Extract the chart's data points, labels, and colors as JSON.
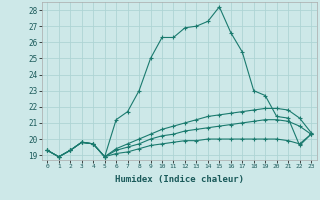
{
  "title": "",
  "xlabel": "Humidex (Indice chaleur)",
  "ylabel": "",
  "background_color": "#cde8e8",
  "grid_color": "#aed4d4",
  "line_color": "#1a7a6e",
  "xlim": [
    -0.5,
    23.5
  ],
  "ylim": [
    18.7,
    28.5
  ],
  "xtick_vals": [
    0,
    1,
    2,
    3,
    4,
    5,
    6,
    7,
    8,
    9,
    10,
    11,
    12,
    13,
    14,
    15,
    16,
    17,
    18,
    19,
    20,
    21,
    22,
    23
  ],
  "xtick_labels": [
    "0",
    "1",
    "2",
    "3",
    "4",
    "5",
    "6",
    "7",
    "8",
    "9",
    "10",
    "11",
    "12",
    "13",
    "14",
    "15",
    "16",
    "17",
    "18",
    "19",
    "20",
    "21",
    "22",
    "23"
  ],
  "ytick_vals": [
    19,
    20,
    21,
    22,
    23,
    24,
    25,
    26,
    27,
    28
  ],
  "ytick_labels": [
    "19",
    "20",
    "21",
    "22",
    "23",
    "24",
    "25",
    "26",
    "27",
    "28"
  ],
  "series": [
    {
      "x": [
        0,
        1,
        2,
        3,
        4,
        5,
        6,
        7,
        8,
        9,
        10,
        11,
        12,
        13,
        14,
        15,
        16,
        17,
        18,
        19,
        20,
        21,
        22,
        23
      ],
      "y": [
        19.3,
        18.9,
        19.3,
        19.8,
        19.7,
        18.9,
        21.2,
        21.7,
        23.0,
        25.0,
        26.3,
        26.3,
        26.9,
        27.0,
        27.3,
        28.2,
        26.6,
        25.4,
        23.0,
        22.7,
        21.4,
        21.3,
        19.6,
        20.3
      ]
    },
    {
      "x": [
        0,
        1,
        2,
        3,
        4,
        5,
        6,
        7,
        8,
        9,
        10,
        11,
        12,
        13,
        14,
        15,
        16,
        17,
        18,
        19,
        20,
        21,
        22,
        23
      ],
      "y": [
        19.3,
        18.9,
        19.3,
        19.8,
        19.7,
        18.9,
        19.4,
        19.7,
        20.0,
        20.3,
        20.6,
        20.8,
        21.0,
        21.2,
        21.4,
        21.5,
        21.6,
        21.7,
        21.8,
        21.9,
        21.9,
        21.8,
        21.3,
        20.4
      ]
    },
    {
      "x": [
        0,
        1,
        2,
        3,
        4,
        5,
        6,
        7,
        8,
        9,
        10,
        11,
        12,
        13,
        14,
        15,
        16,
        17,
        18,
        19,
        20,
        21,
        22,
        23
      ],
      "y": [
        19.3,
        18.9,
        19.3,
        19.8,
        19.7,
        18.9,
        19.3,
        19.5,
        19.7,
        20.0,
        20.2,
        20.3,
        20.5,
        20.6,
        20.7,
        20.8,
        20.9,
        21.0,
        21.1,
        21.2,
        21.2,
        21.1,
        20.8,
        20.3
      ]
    },
    {
      "x": [
        0,
        1,
        2,
        3,
        4,
        5,
        6,
        7,
        8,
        9,
        10,
        11,
        12,
        13,
        14,
        15,
        16,
        17,
        18,
        19,
        20,
        21,
        22,
        23
      ],
      "y": [
        19.3,
        18.9,
        19.3,
        19.8,
        19.7,
        18.9,
        19.1,
        19.2,
        19.4,
        19.6,
        19.7,
        19.8,
        19.9,
        19.9,
        20.0,
        20.0,
        20.0,
        20.0,
        20.0,
        20.0,
        20.0,
        19.9,
        19.7,
        20.3
      ]
    }
  ]
}
